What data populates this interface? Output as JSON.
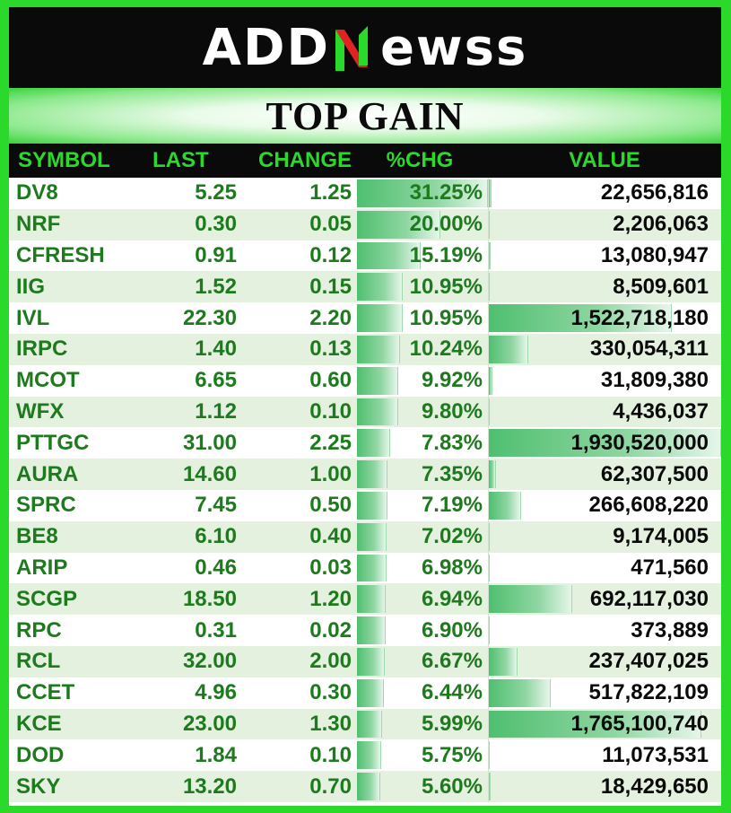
{
  "logo": {
    "left": "ADD",
    "right": "ewss"
  },
  "title": "TOP GAIN",
  "colors": {
    "background": "#2bd92b",
    "header_text": "#2bd92b",
    "symbol_text": "#1d7a1d",
    "bar": "#4fbf6f"
  },
  "columns": {
    "symbol": "SYMBOL",
    "last": "LAST",
    "change": "CHANGE",
    "pct": "%CHG",
    "value": "VALUE"
  },
  "rows": [
    {
      "symbol": "DV8",
      "last": "5.25",
      "change": "1.25",
      "pct": "31.25%",
      "value": "22,656,816",
      "pct_num": 31.25,
      "value_num": 22656816
    },
    {
      "symbol": "NRF",
      "last": "0.30",
      "change": "0.05",
      "pct": "20.00%",
      "value": "2,206,063",
      "pct_num": 20.0,
      "value_num": 2206063
    },
    {
      "symbol": "CFRESH",
      "last": "0.91",
      "change": "0.12",
      "pct": "15.19%",
      "value": "13,080,947",
      "pct_num": 15.19,
      "value_num": 13080947
    },
    {
      "symbol": "IIG",
      "last": "1.52",
      "change": "0.15",
      "pct": "10.95%",
      "value": "8,509,601",
      "pct_num": 10.95,
      "value_num": 8509601
    },
    {
      "symbol": "IVL",
      "last": "22.30",
      "change": "2.20",
      "pct": "10.95%",
      "value": "1,522,718,180",
      "pct_num": 10.95,
      "value_num": 1522718180
    },
    {
      "symbol": "IRPC",
      "last": "1.40",
      "change": "0.13",
      "pct": "10.24%",
      "value": "330,054,311",
      "pct_num": 10.24,
      "value_num": 330054311
    },
    {
      "symbol": "MCOT",
      "last": "6.65",
      "change": "0.60",
      "pct": "9.92%",
      "value": "31,809,380",
      "pct_num": 9.92,
      "value_num": 31809380
    },
    {
      "symbol": "WFX",
      "last": "1.12",
      "change": "0.10",
      "pct": "9.80%",
      "value": "4,436,037",
      "pct_num": 9.8,
      "value_num": 4436037
    },
    {
      "symbol": "PTTGC",
      "last": "31.00",
      "change": "2.25",
      "pct": "7.83%",
      "value": "1,930,520,000",
      "pct_num": 7.83,
      "value_num": 1930520000
    },
    {
      "symbol": "AURA",
      "last": "14.60",
      "change": "1.00",
      "pct": "7.35%",
      "value": "62,307,500",
      "pct_num": 7.35,
      "value_num": 62307500
    },
    {
      "symbol": "SPRC",
      "last": "7.45",
      "change": "0.50",
      "pct": "7.19%",
      "value": "266,608,220",
      "pct_num": 7.19,
      "value_num": 266608220
    },
    {
      "symbol": "BE8",
      "last": "6.10",
      "change": "0.40",
      "pct": "7.02%",
      "value": "9,174,005",
      "pct_num": 7.02,
      "value_num": 9174005
    },
    {
      "symbol": "ARIP",
      "last": "0.46",
      "change": "0.03",
      "pct": "6.98%",
      "value": "471,560",
      "pct_num": 6.98,
      "value_num": 471560
    },
    {
      "symbol": "SCGP",
      "last": "18.50",
      "change": "1.20",
      "pct": "6.94%",
      "value": "692,117,030",
      "pct_num": 6.94,
      "value_num": 692117030
    },
    {
      "symbol": "RPC",
      "last": "0.31",
      "change": "0.02",
      "pct": "6.90%",
      "value": "373,889",
      "pct_num": 6.9,
      "value_num": 373889
    },
    {
      "symbol": "RCL",
      "last": "32.00",
      "change": "2.00",
      "pct": "6.67%",
      "value": "237,407,025",
      "pct_num": 6.67,
      "value_num": 237407025
    },
    {
      "symbol": "CCET",
      "last": "4.96",
      "change": "0.30",
      "pct": "6.44%",
      "value": "517,822,109",
      "pct_num": 6.44,
      "value_num": 517822109
    },
    {
      "symbol": "KCE",
      "last": "23.00",
      "change": "1.30",
      "pct": "5.99%",
      "value": "1,765,100,740",
      "pct_num": 5.99,
      "value_num": 1765100740
    },
    {
      "symbol": "DOD",
      "last": "1.84",
      "change": "0.10",
      "pct": "5.75%",
      "value": "11,073,531",
      "pct_num": 5.75,
      "value_num": 11073531
    },
    {
      "symbol": "SKY",
      "last": "13.20",
      "change": "0.70",
      "pct": "5.60%",
      "value": "18,429,650",
      "pct_num": 5.6,
      "value_num": 18429650
    }
  ]
}
